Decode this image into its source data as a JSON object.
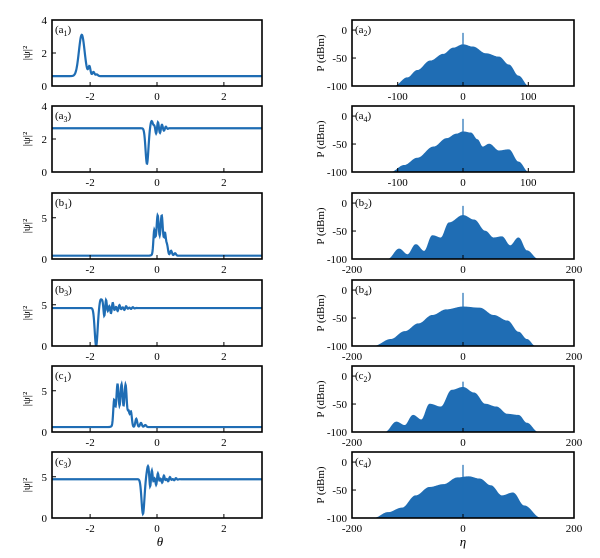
{
  "figure": {
    "accent": "#1f6db4",
    "left_xlabel": "θ",
    "right_xlabel": "η"
  },
  "chart_data": [
    {
      "id": "a1",
      "type": "line",
      "label_main": "(a",
      "label_sub": "1",
      "label_end": ")",
      "ylabel": "|ψ|²",
      "xlim": [
        -3.14,
        3.14
      ],
      "ylim": [
        0,
        4
      ],
      "yticks": [
        0,
        2,
        4
      ],
      "xticks": [
        -2,
        0,
        2
      ],
      "show_xticklabels": true,
      "baseline": 0.6,
      "pulse": {
        "kind": "peak",
        "center": -2.25,
        "height": 3.1,
        "width": 0.12,
        "ripples": [
          [
            -2.02,
            0.55
          ],
          [
            -1.9,
            0.25
          ],
          [
            -1.8,
            0.1
          ]
        ]
      }
    },
    {
      "id": "a3",
      "type": "line",
      "label_main": "(a",
      "label_sub": "3",
      "label_end": ")",
      "ylabel": "|ψ|²",
      "xlim": [
        -3.14,
        3.14
      ],
      "ylim": [
        0,
        4
      ],
      "yticks": [
        0,
        2,
        4
      ],
      "xticks": [
        -2,
        0,
        2
      ],
      "show_xticklabels": true,
      "baseline": 2.65,
      "pulse": {
        "kind": "dip",
        "center": -0.3,
        "depth": 0.5,
        "peak": 3.1,
        "ripples": [
          [
            0.0,
            0.35
          ],
          [
            0.12,
            0.2
          ],
          [
            0.24,
            0.1
          ]
        ]
      }
    },
    {
      "id": "b1",
      "type": "line",
      "label_main": "(b",
      "label_sub": "1",
      "label_end": ")",
      "ylabel": "|ψ|²",
      "xlim": [
        -3.14,
        3.14
      ],
      "ylim": [
        0,
        8
      ],
      "yticks": [
        0,
        5
      ],
      "xticks": [
        -2,
        0,
        2
      ],
      "show_xticklabels": true,
      "baseline": 0.4,
      "pulse": {
        "kind": "flat",
        "start": -0.1,
        "end": 0.25,
        "height": 5.3,
        "tail": [
          [
            0.3,
            1.2
          ],
          [
            0.42,
            0.6
          ],
          [
            0.54,
            0.3
          ]
        ]
      }
    },
    {
      "id": "b3",
      "type": "line",
      "label_main": "(b",
      "label_sub": "3",
      "label_end": ")",
      "ylabel": "|ψ|²",
      "xlim": [
        -3.14,
        3.14
      ],
      "ylim": [
        0,
        8
      ],
      "yticks": [
        0,
        5
      ],
      "xticks": [
        -2,
        0,
        2
      ],
      "show_xticklabels": true,
      "baseline": 4.6,
      "pulse": {
        "kind": "dip",
        "center": -1.82,
        "depth": 0.0,
        "peak": 5.7,
        "ripples": [
          [
            -1.55,
            1.1
          ],
          [
            -1.35,
            0.7
          ],
          [
            -1.15,
            0.4
          ],
          [
            -0.95,
            0.25
          ],
          [
            -0.75,
            0.12
          ]
        ]
      }
    },
    {
      "id": "c1",
      "type": "line",
      "label_main": "(c",
      "label_sub": "1",
      "label_end": ")",
      "ylabel": "|ψ|²",
      "xlim": [
        -3.14,
        3.14
      ],
      "ylim": [
        0,
        8
      ],
      "yticks": [
        0,
        5
      ],
      "xticks": [
        -2,
        0,
        2
      ],
      "show_xticklabels": true,
      "baseline": 0.6,
      "pulse": {
        "kind": "flat",
        "start": -1.3,
        "end": -0.85,
        "height": 5.8,
        "tail": [
          [
            -0.78,
            1.8
          ],
          [
            -0.62,
            1.0
          ],
          [
            -0.48,
            0.5
          ],
          [
            -0.35,
            0.25
          ]
        ]
      }
    },
    {
      "id": "c3",
      "type": "line",
      "label_main": "(c",
      "label_sub": "3",
      "label_end": ")",
      "ylabel": "|ψ|²",
      "xlim": [
        -3.14,
        3.14
      ],
      "ylim": [
        0,
        8
      ],
      "yticks": [
        0,
        5
      ],
      "xticks": [
        -2,
        0,
        2
      ],
      "show_xticklabels": true,
      "baseline": 4.7,
      "pulse": {
        "kind": "dip",
        "center": -0.42,
        "depth": 0.5,
        "peak": 6.0,
        "ripples": [
          [
            -0.18,
            1.2
          ],
          [
            0.0,
            0.8
          ],
          [
            0.18,
            0.5
          ],
          [
            0.36,
            0.3
          ],
          [
            0.54,
            0.15
          ]
        ]
      }
    },
    {
      "id": "a2",
      "type": "area",
      "label_main": "(a",
      "label_sub": "2",
      "label_end": ")",
      "ylabel": "P (dBm)",
      "xlim": [
        -170,
        170
      ],
      "ylim": [
        -100,
        18
      ],
      "yticks": [
        0,
        -50,
        -100
      ],
      "xticks": [
        -100,
        0,
        100
      ],
      "show_xticklabels": true,
      "spike": -5,
      "envelope": [
        [
          -105,
          -100
        ],
        [
          -85,
          -85
        ],
        [
          -70,
          -72
        ],
        [
          -50,
          -55
        ],
        [
          -30,
          -43
        ],
        [
          -15,
          -32
        ],
        [
          0,
          -26
        ],
        [
          15,
          -30
        ],
        [
          35,
          -42
        ],
        [
          55,
          -48
        ],
        [
          70,
          -62
        ],
        [
          85,
          -82
        ],
        [
          100,
          -100
        ]
      ]
    },
    {
      "id": "a4",
      "type": "area",
      "label_main": "(a",
      "label_sub": "4",
      "label_end": ")",
      "ylabel": "P (dBm)",
      "xlim": [
        -170,
        170
      ],
      "ylim": [
        -100,
        18
      ],
      "yticks": [
        0,
        -50,
        -100
      ],
      "xticks": [
        -100,
        0,
        100
      ],
      "show_xticklabels": true,
      "spike": -5,
      "envelope": [
        [
          -110,
          -100
        ],
        [
          -90,
          -88
        ],
        [
          -70,
          -75
        ],
        [
          -45,
          -55
        ],
        [
          -25,
          -40
        ],
        [
          -10,
          -32
        ],
        [
          0,
          -28
        ],
        [
          12,
          -30
        ],
        [
          22,
          -42
        ],
        [
          30,
          -55
        ],
        [
          40,
          -50
        ],
        [
          55,
          -62
        ],
        [
          70,
          -60
        ],
        [
          85,
          -82
        ],
        [
          100,
          -100
        ]
      ]
    },
    {
      "id": "b2",
      "type": "area",
      "label_main": "(b",
      "label_sub": "2",
      "label_end": ")",
      "ylabel": "P (dBm)",
      "xlim": [
        -200,
        200
      ],
      "ylim": [
        -100,
        18
      ],
      "yticks": [
        0,
        -50,
        -100
      ],
      "xticks": [
        -200,
        0,
        200
      ],
      "show_xticklabels": true,
      "spike": -5,
      "envelope": [
        [
          -135,
          -100
        ],
        [
          -115,
          -82
        ],
        [
          -100,
          -92
        ],
        [
          -85,
          -74
        ],
        [
          -70,
          -86
        ],
        [
          -55,
          -58
        ],
        [
          -40,
          -62
        ],
        [
          -25,
          -35
        ],
        [
          0,
          -22
        ],
        [
          20,
          -30
        ],
        [
          40,
          -50
        ],
        [
          55,
          -62
        ],
        [
          70,
          -60
        ],
        [
          85,
          -76
        ],
        [
          100,
          -62
        ],
        [
          115,
          -85
        ],
        [
          135,
          -100
        ]
      ]
    },
    {
      "id": "b4",
      "type": "area",
      "label_main": "(b",
      "label_sub": "4",
      "label_end": ")",
      "ylabel": "P (dBm)",
      "xlim": [
        -200,
        200
      ],
      "ylim": [
        -100,
        18
      ],
      "yticks": [
        0,
        -50,
        -100
      ],
      "xticks": [
        -200,
        0,
        200
      ],
      "show_xticklabels": true,
      "spike": -5,
      "envelope": [
        [
          -160,
          -100
        ],
        [
          -130,
          -88
        ],
        [
          -105,
          -74
        ],
        [
          -80,
          -60
        ],
        [
          -55,
          -45
        ],
        [
          -30,
          -35
        ],
        [
          0,
          -30
        ],
        [
          30,
          -32
        ],
        [
          55,
          -45
        ],
        [
          80,
          -55
        ],
        [
          100,
          -75
        ],
        [
          115,
          -88
        ],
        [
          130,
          -100
        ]
      ]
    },
    {
      "id": "c2",
      "type": "area",
      "label_main": "(c",
      "label_sub": "2",
      "label_end": ")",
      "ylabel": "P (dBm)",
      "xlim": [
        -200,
        200
      ],
      "ylim": [
        -100,
        18
      ],
      "yticks": [
        0,
        -50,
        -100
      ],
      "xticks": [
        -200,
        0,
        200
      ],
      "show_xticklabels": true,
      "spike": -10,
      "envelope": [
        [
          -140,
          -100
        ],
        [
          -120,
          -82
        ],
        [
          -105,
          -88
        ],
        [
          -90,
          -70
        ],
        [
          -75,
          -78
        ],
        [
          -60,
          -50
        ],
        [
          -40,
          -55
        ],
        [
          -20,
          -25
        ],
        [
          0,
          -20
        ],
        [
          20,
          -30
        ],
        [
          40,
          -50
        ],
        [
          60,
          -55
        ],
        [
          80,
          -68
        ],
        [
          100,
          -70
        ],
        [
          115,
          -84
        ],
        [
          135,
          -100
        ]
      ]
    },
    {
      "id": "c4",
      "type": "area",
      "label_main": "(c",
      "label_sub": "4",
      "label_end": ")",
      "ylabel": "P (dBm)",
      "xlim": [
        -200,
        200
      ],
      "ylim": [
        -100,
        18
      ],
      "yticks": [
        0,
        -50,
        -100
      ],
      "xticks": [
        -200,
        0,
        200
      ],
      "show_xticklabels": true,
      "spike": -5,
      "envelope": [
        [
          -160,
          -100
        ],
        [
          -135,
          -90
        ],
        [
          -110,
          -82
        ],
        [
          -85,
          -60
        ],
        [
          -60,
          -45
        ],
        [
          -35,
          -40
        ],
        [
          -10,
          -28
        ],
        [
          10,
          -26
        ],
        [
          30,
          -30
        ],
        [
          50,
          -42
        ],
        [
          70,
          -60
        ],
        [
          90,
          -55
        ],
        [
          110,
          -78
        ],
        [
          140,
          -100
        ]
      ]
    }
  ]
}
